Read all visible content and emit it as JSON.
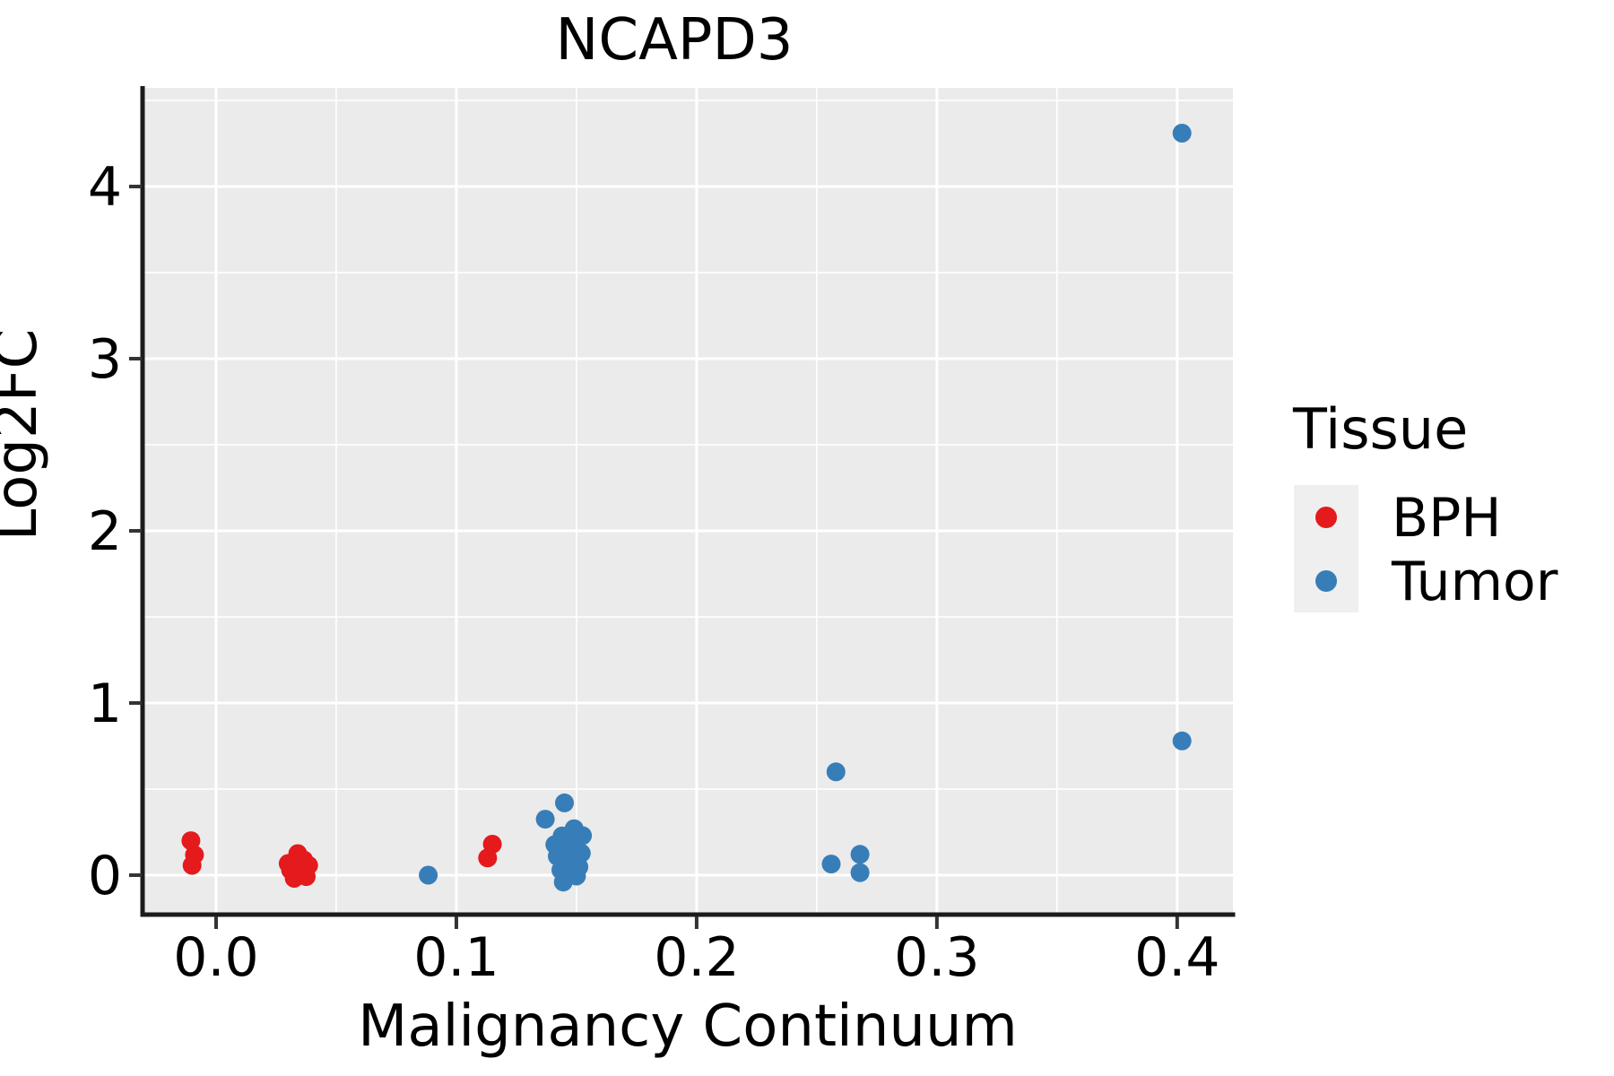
{
  "title": "NCAPD3",
  "axes": {
    "x_label": "Malignancy Continuum",
    "y_label": "Log2FC",
    "x_tick_labels": [
      "0.0",
      "0.1",
      "0.2",
      "0.3",
      "0.4"
    ],
    "y_tick_labels": [
      "0",
      "1",
      "2",
      "3",
      "4"
    ]
  },
  "legend": {
    "title": "Tissue",
    "entries": [
      {
        "label": "BPH",
        "color": "#E41A1C"
      },
      {
        "label": "Tumor",
        "color": "#377EB8"
      }
    ]
  },
  "colors": {
    "panel_background": "#EBEBEB",
    "grid": "#FFFFFF",
    "spine": "#1C1C1C",
    "tick": "#333333",
    "legend_key_background": "#EFEFEF"
  },
  "chart_data": {
    "type": "scatter",
    "title": "NCAPD3",
    "xlabel": "Malignancy Continuum",
    "ylabel": "Log2FC",
    "xlim": [
      -0.0306,
      0.4232
    ],
    "ylim": [
      -0.229,
      4.573
    ],
    "x_major_ticks": [
      0.0,
      0.1,
      0.2,
      0.3,
      0.4
    ],
    "x_minor_ticks": [
      0.05,
      0.15,
      0.25,
      0.35
    ],
    "y_major_ticks": [
      0,
      1,
      2,
      3,
      4
    ],
    "y_minor_ticks": [
      0.5,
      1.5,
      2.5,
      3.5,
      4.5
    ],
    "grid": true,
    "legend_position": "right",
    "series": [
      {
        "name": "BPH",
        "color": "#E41A1C",
        "points": [
          [
            -0.0105,
            0.2
          ],
          [
            -0.009,
            0.118
          ],
          [
            -0.01,
            0.057
          ],
          [
            0.034,
            0.125
          ],
          [
            0.03,
            0.068
          ],
          [
            0.0385,
            0.057
          ],
          [
            0.031,
            0.03
          ],
          [
            0.035,
            0.02
          ],
          [
            0.0365,
            0.088
          ],
          [
            0.0325,
            -0.018
          ],
          [
            0.0375,
            -0.008
          ],
          [
            0.115,
            0.18
          ],
          [
            0.113,
            0.1
          ]
        ]
      },
      {
        "name": "Tumor",
        "color": "#377EB8",
        "points": [
          [
            0.0883,
            0.0
          ],
          [
            0.145,
            0.42
          ],
          [
            0.137,
            0.325
          ],
          [
            0.149,
            0.27
          ],
          [
            0.1525,
            0.23
          ],
          [
            0.144,
            0.228
          ],
          [
            0.141,
            0.178
          ],
          [
            0.148,
            0.168
          ],
          [
            0.152,
            0.128
          ],
          [
            0.142,
            0.11
          ],
          [
            0.147,
            0.075
          ],
          [
            0.151,
            0.048
          ],
          [
            0.1435,
            0.03
          ],
          [
            0.15,
            -0.005
          ],
          [
            0.1445,
            -0.04
          ],
          [
            0.258,
            0.6
          ],
          [
            0.256,
            0.065
          ],
          [
            0.268,
            0.121
          ],
          [
            0.268,
            0.015
          ],
          [
            0.402,
            0.78
          ],
          [
            0.402,
            4.31
          ]
        ]
      }
    ]
  }
}
